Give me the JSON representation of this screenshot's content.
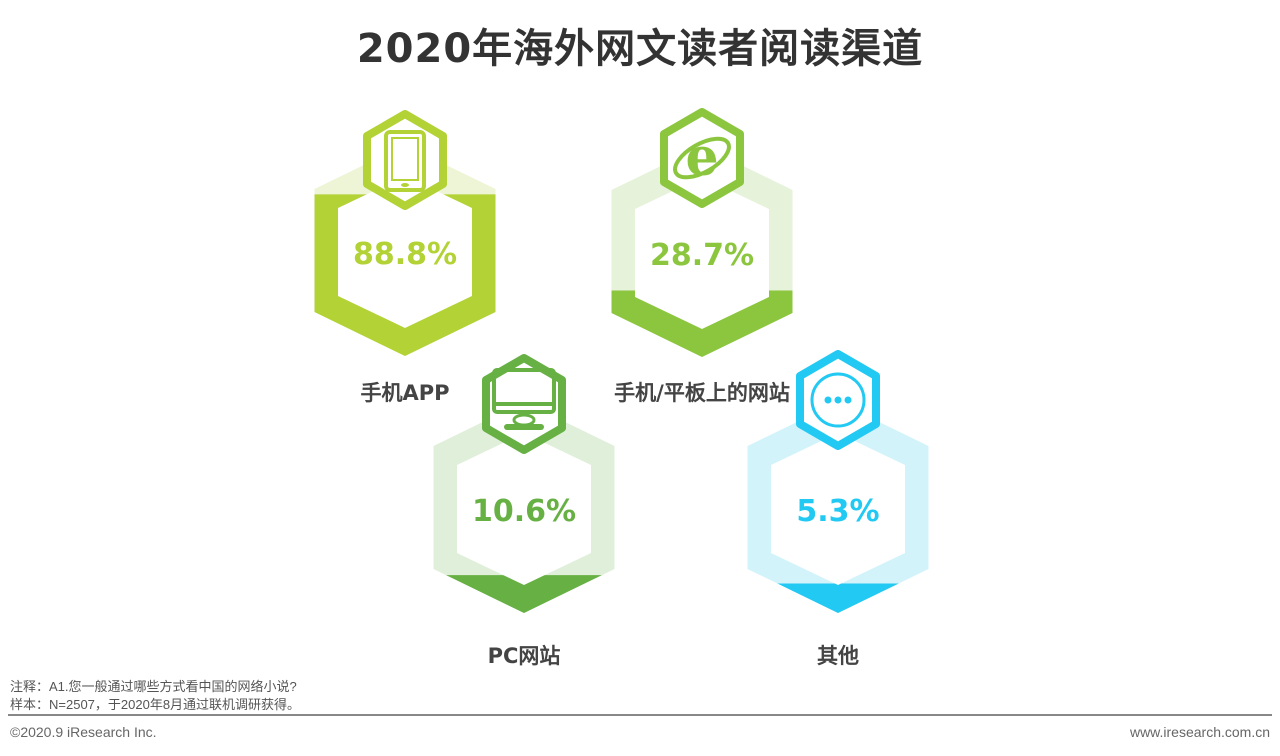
{
  "title": "2020年海外网文读者阅读渠道",
  "chart_data": {
    "type": "bar",
    "title": "2020年海外网文读者阅读渠道",
    "categories": [
      "手机APP",
      "手机/平板上的网站",
      "PC网站",
      "其他"
    ],
    "values": [
      88.8,
      28.7,
      10.6,
      5.3
    ],
    "value_labels": [
      "88.8%",
      "28.7%",
      "10.6%",
      "5.3%"
    ],
    "unit": "%",
    "icons": [
      "tablet-icon",
      "internet-explorer-icon",
      "desktop-monitor-icon",
      "more-dots-icon"
    ],
    "colors": [
      "#b2d235",
      "#8cc63f",
      "#67b044",
      "#22c9f2"
    ],
    "light_colors": [
      "#eef5d6",
      "#e6f2d9",
      "#e0efd9",
      "#d3f3fb"
    ]
  },
  "notes": {
    "note": "注释：A1.您一般通过哪些方式看中国的网络小说?",
    "sample": "样本：N=2507，于2020年8月通过联机调研获得。"
  },
  "footer": {
    "copyright": "©2020.9 iResearch Inc.",
    "website": "www.iresearch.com.cn"
  }
}
